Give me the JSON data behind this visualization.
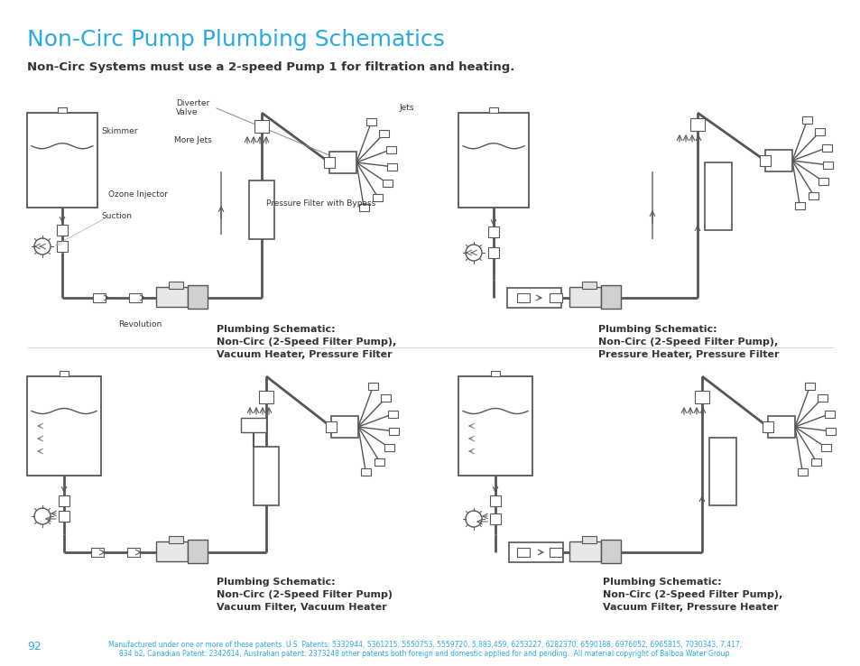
{
  "title": "Non-Circ Pump Plumbing Schematics",
  "title_color": "#29ABE2",
  "title_fontsize": 18,
  "subtitle": "Non-Circ Systems must use a 2-speed Pump 1 for filtration and heating.",
  "subtitle_fontsize": 9.5,
  "background_color": "#ffffff",
  "page_number": "92",
  "footer_text": "Manufactured under one or more of these patents. U.S. Patents: 5332944, 5361215, 5550753, 5559720, 5,883,459, 6253227, 6282370, 6590188, 6976052, 6965815, 7030343, 7,417,\n834 b2, Canadian Patent: 2342614, Australian patent: 2373248 other patents both foreign and domestic applied for and pending.  All material copyright of Balboa Water Group.",
  "footer_color": "#29ABE2",
  "footer_fontsize": 5.5,
  "line_color": "#555555",
  "text_color": "#333333",
  "label_fontsize": 8,
  "ann_fontsize": 6.5
}
